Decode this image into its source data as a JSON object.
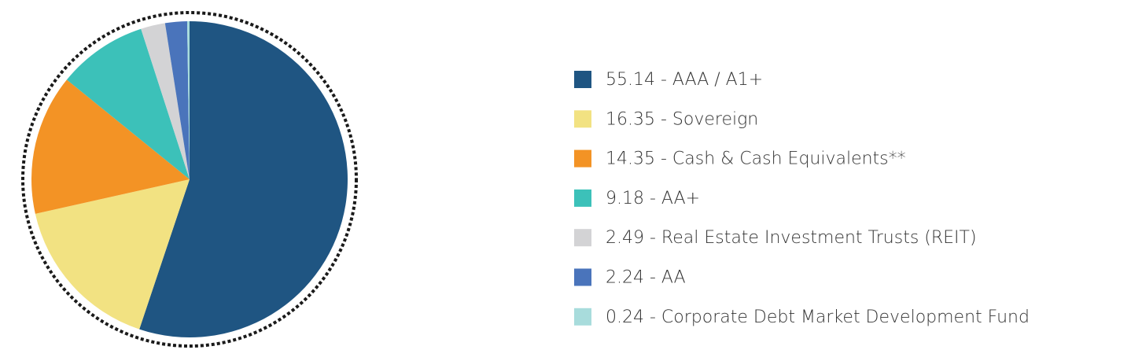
{
  "chart_data": {
    "type": "pie",
    "categories": [
      "55.14 - AAA / A1+",
      "16.35 - Sovereign",
      "14.35 - Cash & Cash Equivalents**",
      "9.18 - AA+",
      "2.49 - Real Estate Investment Trusts (REIT)",
      "2.24 - AA",
      "0.24 - Corporate Debt Market Development Fund"
    ],
    "values": [
      55.14,
      16.35,
      14.35,
      9.18,
      2.49,
      2.24,
      0.24
    ],
    "colors": [
      "#1f5582",
      "#f2e282",
      "#f39325",
      "#3cc1b9",
      "#d3d3d5",
      "#4a74bb",
      "#a8dcdc"
    ],
    "legend": "right"
  }
}
